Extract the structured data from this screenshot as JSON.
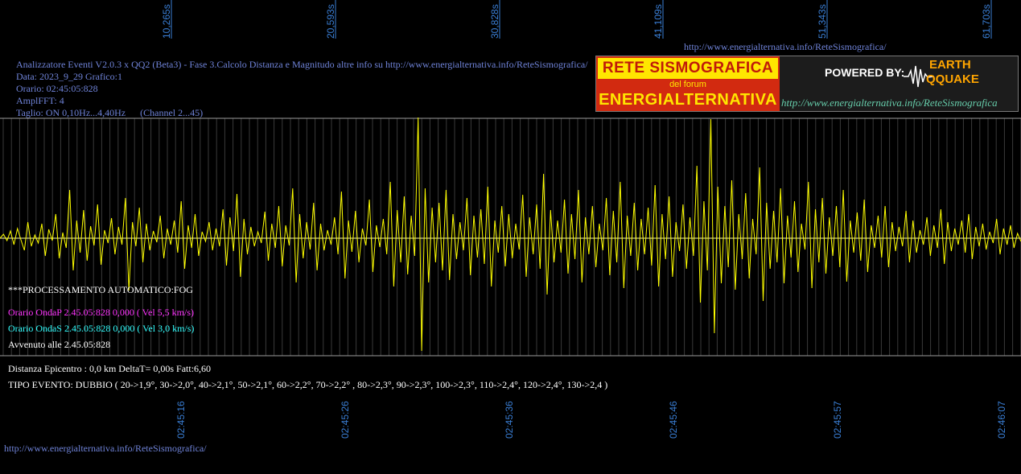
{
  "app": {
    "title_line": "Analizzatore Eventi V2.0.3 x QQ2 (Beta3) - Fase 3.Calcolo Distanza e Magnitudo altre info su http://www.energialternativa.info/ReteSismografica/",
    "data_line": "Data: 2023_9_29 Grafico:1",
    "orario_line": "Orario: 02:45:05:828",
    "ampl_line": "AmplFFT: 4",
    "taglio_line": "Taglio: ON 0,10Hz...4,40Hz      (Channel 2...45)",
    "top_url": "http://www.energialternativa.info/ReteSismografica/",
    "bottom_url": "http://www.energialternativa.info/ReteSismografica/"
  },
  "banner": {
    "line1": "RETE SISMOGRAFICA",
    "line2": "del forum",
    "line3": "ENERGIALTERNATIVA",
    "powered": "POWERED BY:",
    "logo1": "EARTH",
    "logo2": "QQUAKE",
    "url": "http://www.energialternativa.info/ReteSismografica"
  },
  "analysis": {
    "processing": "***PROCESSAMENTO AUTOMATICO:FOG",
    "onda_p": "Orario OndaP 2.45.05:828  0,000 ( Vel 5,5 km/s)",
    "onda_s": "Orario OndaS 2.45.05:828  0,000 ( Vel 3,0 km/s)",
    "avvenuto": "Avvenuto alle 2.45.05:828",
    "distanza": "Distanza Epicentro : 0,0 km DeltaT= 0,00s  Fatt:6,60",
    "tipo_evento": "TIPO EVENTO: DUBBIO ( 20->1,9°, 30->2,0°, 40->2,1°, 50->2,1°, 60->2,2°, 70->2,2° , 80->2,3°, 90->2,3°, 100->2,3°, 110->2,4°, 120->2,4°, 130->2,4 )"
  },
  "chart_data": {
    "type": "line",
    "top_axis_labels": [
      "10,265s",
      "20,593s",
      "30,828s",
      "41,109s",
      "51,343s",
      "61,703s"
    ],
    "bottom_axis_labels": [
      "02:45:16",
      "02:45:26",
      "02:45:36",
      "02:45:46",
      "02:45:57",
      "02:46:07"
    ],
    "series_color": "#ffff00",
    "baseline_color": "#ffffaa",
    "grid": true,
    "series": [
      {
        "values": [
          0,
          5,
          -3,
          9,
          -8,
          12,
          -2,
          -15,
          20,
          -10,
          4,
          -6,
          18,
          -22,
          11,
          -3,
          30,
          -25,
          7,
          -12,
          60,
          -40,
          22,
          -18,
          35,
          -28,
          15,
          -9,
          42,
          -33,
          10,
          -6,
          25,
          -20,
          14,
          -8,
          50,
          -65,
          20,
          -10,
          38,
          -30,
          18,
          -15,
          9,
          -5,
          28,
          -25,
          12,
          -8,
          22,
          -18,
          46,
          -38,
          16,
          -12,
          30,
          -22,
          8,
          -4,
          20,
          -15,
          12,
          -10,
          36,
          -34,
          26,
          -16,
          55,
          -48,
          24,
          -20,
          14,
          -10,
          8,
          -6,
          33,
          -28,
          18,
          -12,
          40,
          -35,
          16,
          -9,
          62,
          -55,
          30,
          -25,
          20,
          -14,
          44,
          -40,
          18,
          -15,
          10,
          -8,
          26,
          -20,
          58,
          -50,
          22,
          -17,
          34,
          -30,
          12,
          -9,
          48,
          -42,
          16,
          -11,
          24,
          -20,
          70,
          -60,
          35,
          -30,
          52,
          -45,
          28,
          -22,
          150,
          -140,
          62,
          -55,
          38,
          -30,
          44,
          -40,
          60,
          -52,
          30,
          -26,
          20,
          -15,
          50,
          -46,
          28,
          -24,
          36,
          -32,
          64,
          -60,
          22,
          -18,
          40,
          -35,
          30,
          -25,
          18,
          -14,
          54,
          -48,
          26,
          -20,
          42,
          -38,
          80,
          -70,
          35,
          -30,
          22,
          -18,
          48,
          -44,
          30,
          -26,
          60,
          -55,
          26,
          -20,
          40,
          -36,
          18,
          -15,
          50,
          -46,
          34,
          -30,
          70,
          -62,
          28,
          -22,
          44,
          -40,
          24,
          -20,
          38,
          -34,
          66,
          -60,
          30,
          -26,
          52,
          -48,
          20,
          -16,
          42,
          -38,
          26,
          -22,
          90,
          -80,
          46,
          -40,
          148,
          -118,
          64,
          -56,
          40,
          -36,
          72,
          -64,
          30,
          -26,
          56,
          -50,
          24,
          -20,
          88,
          -78,
          44,
          -38,
          34,
          -30,
          62,
          -56,
          28,
          -24,
          46,
          -42,
          18,
          -14,
          70,
          -62,
          36,
          -30,
          50,
          -44,
          26,
          -22,
          40,
          -36,
          60,
          -54,
          22,
          -18,
          32,
          -28,
          48,
          -42,
          16,
          -12,
          28,
          -24,
          40,
          -36,
          20,
          -16,
          14,
          -10,
          34,
          -30,
          22,
          -18,
          10,
          -8,
          26,
          -22,
          16,
          -12,
          36,
          -32,
          20,
          -16,
          12,
          -8,
          22,
          -18,
          30,
          -26,
          14,
          -10,
          18,
          -14,
          8,
          -6,
          24,
          -20,
          12,
          -8,
          16,
          -12,
          6,
          -4
        ]
      }
    ]
  }
}
